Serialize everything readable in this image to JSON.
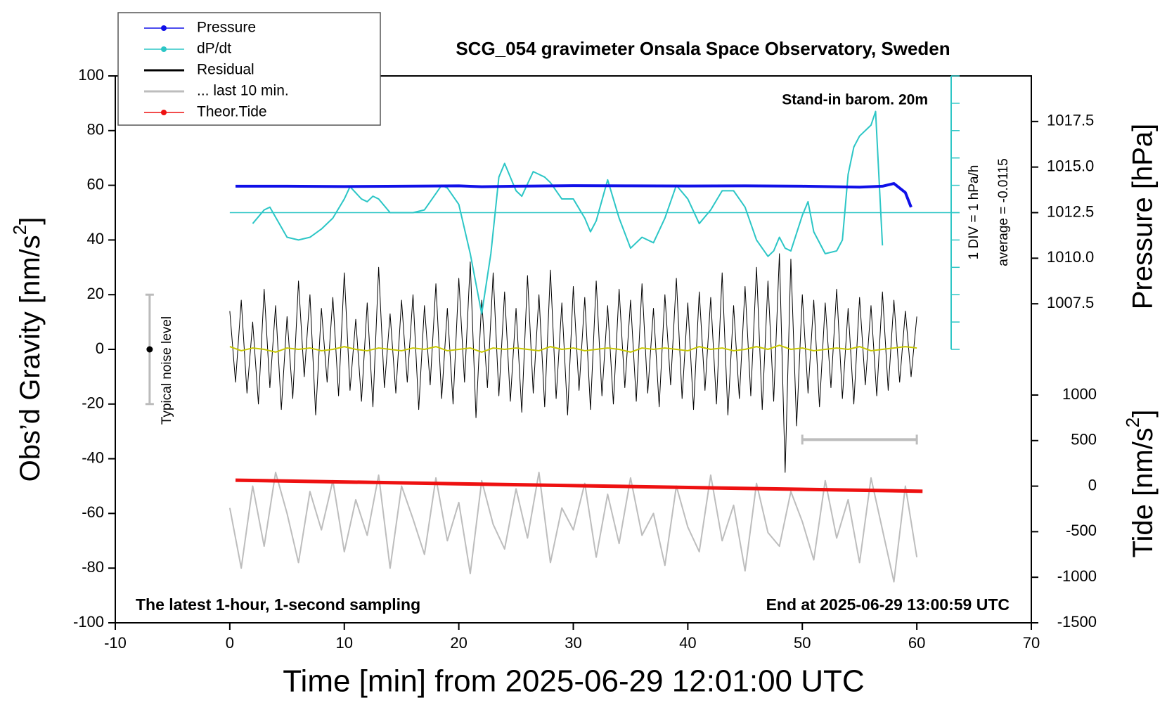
{
  "chart_data": {
    "type": "line",
    "title": "SCG_054 gravimeter Onsala Space Observatory, Sweden",
    "subtitle": "Stand-in barom. 20m",
    "xlabel": "Time [min] from 2025-06-29 12:01:00 UTC",
    "ylabel": {
      "text": "Obs’d Gravity [nm/s",
      "sup": "2",
      "end": "]"
    },
    "y2label": "Pressure [hPa]",
    "y3label": {
      "text": "Tide [nm/s",
      "sup": "2",
      "end": "]"
    },
    "footer_left": "The latest 1-hour, 1-second sampling",
    "footer_right": "End at 2025-06-29 13:00:59 UTC",
    "xlim": [
      -10,
      70
    ],
    "xticks": [
      -10,
      0,
      10,
      20,
      30,
      40,
      50,
      60,
      70
    ],
    "ylim": [
      -100,
      100
    ],
    "yticks": [
      -100,
      -80,
      -60,
      -40,
      -20,
      0,
      20,
      40,
      60,
      80,
      100
    ],
    "y2lim": [
      1005,
      1020
    ],
    "y2ticks": [
      {
        "value": 1007.5,
        "label": "1007.5"
      },
      {
        "value": 1010,
        "label": "1010.0"
      },
      {
        "value": 1012.5,
        "label": "1012.5"
      },
      {
        "value": 1015,
        "label": "1015.0"
      },
      {
        "value": 1017.5,
        "label": "1017.5"
      }
    ],
    "y3lim": [
      -1500,
      1000
    ],
    "y3ticks": [
      -1500,
      -1000,
      -500,
      0,
      500,
      1000
    ],
    "legend": "upper left",
    "dpdt_axis": {
      "x": 63,
      "ylim": [
        0,
        100
      ],
      "ticks": [
        0,
        10,
        20,
        30,
        40,
        50,
        60,
        70,
        80,
        90,
        100
      ],
      "mean": 50,
      "color": "#2cc6c6",
      "div_label": "1 DIV = 1 hPa/h",
      "average_label": "average = -0.0115"
    },
    "noise_level": {
      "label": "Typical noise level",
      "x": -7,
      "low": -20,
      "high": 20,
      "center": 0
    },
    "last_window": {
      "xlim": [
        50,
        60
      ],
      "y": -33
    },
    "series": [
      {
        "name": "Pressure",
        "color": "#1010e8",
        "axis": "y2",
        "marker": true,
        "x": [
          0.5,
          5,
          10,
          15,
          20,
          22,
          25,
          30,
          35,
          40,
          45,
          50,
          55,
          57,
          58,
          59,
          59.5
        ],
        "values": [
          1013.95,
          1013.95,
          1013.93,
          1013.95,
          1013.97,
          1013.92,
          1013.95,
          1013.98,
          1013.97,
          1013.96,
          1013.97,
          1013.95,
          1013.9,
          1013.95,
          1014.1,
          1013.6,
          1012.8
        ]
      },
      {
        "name": "dP/dt",
        "color": "#2cc6c6",
        "marker": true,
        "x": [
          2,
          3,
          3.5,
          5,
          6,
          7,
          8,
          9,
          10,
          10.5,
          11.5,
          12,
          12.5,
          13,
          14,
          15,
          16,
          17,
          18,
          18.5,
          19,
          20,
          21,
          22,
          22.8,
          23.5,
          24,
          25,
          25.5,
          26.5,
          27.5,
          28,
          29,
          30,
          31,
          31.5,
          32,
          33,
          34,
          35,
          36,
          37,
          38,
          39,
          40,
          41,
          42,
          43,
          44,
          45,
          46,
          47,
          47.5,
          48,
          48.5,
          49,
          50,
          50.5,
          51,
          52,
          53,
          53.5,
          54,
          54.5,
          55,
          56,
          56.4,
          57
        ],
        "values": [
          46,
          51,
          52,
          41,
          40,
          41,
          44,
          48,
          55,
          59.5,
          55,
          54,
          56,
          55,
          50,
          50,
          50,
          51,
          57,
          60,
          59,
          53,
          35,
          13,
          35,
          63,
          68,
          58,
          56,
          65,
          63,
          61,
          55,
          55,
          48,
          43,
          47,
          62,
          48,
          37,
          41,
          39,
          48,
          60,
          55,
          46,
          51,
          58,
          58,
          52,
          40,
          34,
          36,
          41,
          37,
          36,
          49,
          54,
          43,
          35,
          36,
          40,
          64,
          74,
          78,
          82,
          87,
          38
        ]
      },
      {
        "name": "Residual",
        "color": "#000000",
        "x": [
          0,
          0.5,
          1,
          1.5,
          2,
          2.5,
          3,
          3.5,
          4,
          4.5,
          5,
          5.5,
          6,
          6.5,
          7,
          7.5,
          8,
          8.5,
          9,
          9.5,
          10,
          10.5,
          11,
          11.5,
          12,
          12.5,
          13,
          13.5,
          14,
          14.5,
          15,
          15.5,
          16,
          16.5,
          17,
          17.5,
          18,
          18.5,
          19,
          19.5,
          20,
          20.5,
          21,
          21.5,
          22,
          22.5,
          23,
          23.5,
          24,
          24.5,
          25,
          25.5,
          26,
          26.5,
          27,
          27.5,
          28,
          28.5,
          29,
          29.5,
          30,
          30.5,
          31,
          31.5,
          32,
          32.5,
          33,
          33.5,
          34,
          34.5,
          35,
          35.5,
          36,
          36.5,
          37,
          37.5,
          38,
          38.5,
          39,
          39.5,
          40,
          40.5,
          41,
          41.5,
          42,
          42.5,
          43,
          43.5,
          44,
          44.5,
          45,
          45.5,
          46,
          46.5,
          47,
          47.5,
          48,
          48.5,
          49,
          49.5,
          50,
          50.5,
          51,
          51.5,
          52,
          52.5,
          53,
          53.5,
          54,
          54.5,
          55,
          55.5,
          56,
          56.5,
          57,
          57.5,
          58,
          58.5,
          59,
          59.5,
          60
        ],
        "values": [
          14,
          -12,
          18,
          -16,
          10,
          -20,
          22,
          -14,
          16,
          -22,
          12,
          -18,
          25,
          -10,
          20,
          -24,
          15,
          -12,
          19,
          -17,
          28,
          -15,
          11,
          -19,
          17,
          -21,
          30,
          -14,
          13,
          -16,
          18,
          -12,
          20,
          -22,
          16,
          -13,
          24,
          -18,
          15,
          -20,
          26,
          -12,
          32,
          -25,
          18,
          -14,
          28,
          -17,
          21,
          -19,
          15,
          -23,
          27,
          -16,
          20,
          -21,
          29,
          -18,
          17,
          -24,
          23,
          -15,
          19,
          -22,
          25,
          -17,
          16,
          -20,
          22,
          -14,
          18,
          -19,
          24,
          -16,
          15,
          -21,
          20,
          -13,
          26,
          -18,
          17,
          -22,
          21,
          -15,
          19,
          -20,
          28,
          -24,
          16,
          -18,
          23,
          -17,
          30,
          -22,
          25,
          -19,
          35,
          -45,
          33,
          -28,
          20,
          -16,
          18,
          -21,
          17,
          -14,
          22,
          -18,
          15,
          -20,
          19,
          -13,
          16,
          -17,
          21,
          -15,
          18,
          -12,
          14,
          -10,
          12
        ]
      },
      {
        "name": "... last 10 min.",
        "color": "#bdbdbd",
        "x": [
          0,
          1,
          2,
          3,
          4,
          5,
          6,
          7,
          8,
          9,
          10,
          11,
          12,
          13,
          14,
          15,
          16,
          17,
          18,
          19,
          20,
          21,
          22,
          23,
          24,
          25,
          26,
          27,
          28,
          29,
          30,
          31,
          32,
          33,
          34,
          35,
          36,
          37,
          38,
          39,
          40,
          41,
          42,
          43,
          44,
          45,
          46,
          47,
          48,
          49,
          50,
          51,
          52,
          53,
          54,
          55,
          56,
          57,
          58,
          59,
          60
        ],
        "values": [
          -58,
          -80,
          -50,
          -72,
          -45,
          -60,
          -78,
          -52,
          -66,
          -48,
          -74,
          -55,
          -68,
          -46,
          -80,
          -50,
          -62,
          -75,
          -47,
          -70,
          -56,
          -82,
          -48,
          -64,
          -73,
          -51,
          -69,
          -45,
          -78,
          -58,
          -66,
          -49,
          -76,
          -53,
          -71,
          -47,
          -68,
          -60,
          -79,
          -50,
          -65,
          -74,
          -46,
          -70,
          -57,
          -81,
          -49,
          -67,
          -72,
          -52,
          -63,
          -77,
          -48,
          -69,
          -55,
          -78,
          -47,
          -66,
          -85,
          -50,
          -76
        ]
      },
      {
        "name": "Theor.Tide",
        "color": "#ee1111",
        "axis": "y3",
        "marker": true,
        "x": [
          0.5,
          60.5
        ],
        "values": [
          65,
          -56
        ]
      },
      {
        "color": "#c8c800",
        "x": [
          0,
          1,
          2,
          3,
          4,
          5,
          6,
          7,
          8,
          9,
          10,
          11,
          12,
          13,
          14,
          15,
          16,
          17,
          18,
          19,
          20,
          21,
          22,
          23,
          24,
          25,
          26,
          27,
          28,
          29,
          30,
          31,
          32,
          33,
          34,
          35,
          36,
          37,
          38,
          39,
          40,
          41,
          42,
          43,
          44,
          45,
          46,
          47,
          48,
          49,
          50,
          51,
          52,
          53,
          54,
          55,
          56,
          57,
          58,
          59,
          60
        ],
        "values": [
          1,
          -0.5,
          0.5,
          0,
          -1,
          0.5,
          0,
          0.5,
          -0.5,
          0,
          1,
          0,
          -0.5,
          0.5,
          0,
          -0.5,
          0.5,
          0,
          1,
          -0.5,
          0,
          0.5,
          -1,
          0.5,
          0,
          0.5,
          0,
          -0.5,
          1,
          0,
          0.5,
          -0.5,
          0,
          0.5,
          0,
          -1,
          0.5,
          0,
          0.5,
          0,
          -0.5,
          1,
          0,
          0.5,
          -0.5,
          0,
          1,
          0,
          1.5,
          0,
          0.5,
          -0.5,
          0,
          0.5,
          0,
          1,
          -0.5,
          0,
          0.5,
          1,
          0.5
        ]
      }
    ]
  }
}
